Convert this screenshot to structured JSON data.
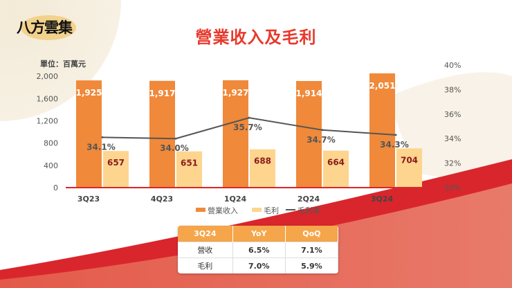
{
  "header": {
    "logo_text": "八方雲集",
    "title": "營業收入及毛利",
    "unit_label": "單位：百萬元"
  },
  "colors": {
    "revenue": "#f0893a",
    "gross_profit": "#fdd58f",
    "margin_line": "#555555",
    "title": "#e8392c",
    "table_header": "#f5a54a",
    "baseline": "#d9262c"
  },
  "chart_data": {
    "type": "bar",
    "categories": [
      "3Q23",
      "4Q23",
      "1Q24",
      "2Q24",
      "3Q24"
    ],
    "series": [
      {
        "name": "營業收入",
        "type": "bar",
        "axis": "left",
        "values": [
          1925,
          1917,
          1927,
          1914,
          2051
        ],
        "labels": [
          "1,925",
          "1,917",
          "1,927",
          "1,914",
          "2,051"
        ]
      },
      {
        "name": "毛利",
        "type": "bar",
        "axis": "left",
        "values": [
          657,
          651,
          688,
          664,
          704
        ],
        "labels": [
          "657",
          "651",
          "688",
          "664",
          "704"
        ]
      },
      {
        "name": "毛利率",
        "type": "line",
        "axis": "right",
        "values": [
          34.1,
          34.0,
          35.7,
          34.7,
          34.3
        ],
        "labels": [
          "34.1%",
          "34.0%",
          "35.7%",
          "34.7%",
          "34.3%"
        ]
      }
    ],
    "left_axis": {
      "ylim": [
        0,
        2200
      ],
      "ticks": [
        0,
        400,
        800,
        1200,
        1600,
        2000
      ],
      "tick_labels": [
        "0",
        "400",
        "800",
        "1,200",
        "1,600",
        "2,000"
      ]
    },
    "right_axis": {
      "ylim": [
        30,
        40
      ],
      "ticks": [
        30,
        32,
        34,
        36,
        38,
        40
      ],
      "tick_labels": [
        "30%",
        "32%",
        "34%",
        "36%",
        "38%",
        "40%"
      ]
    },
    "legend_position": "bottom",
    "grid": false
  },
  "summary_table": {
    "headers": [
      "3Q24",
      "YoY",
      "QoQ"
    ],
    "rows": [
      [
        "營收",
        "6.5%",
        "7.1%"
      ],
      [
        "毛利",
        "7.0%",
        "5.9%"
      ]
    ]
  }
}
